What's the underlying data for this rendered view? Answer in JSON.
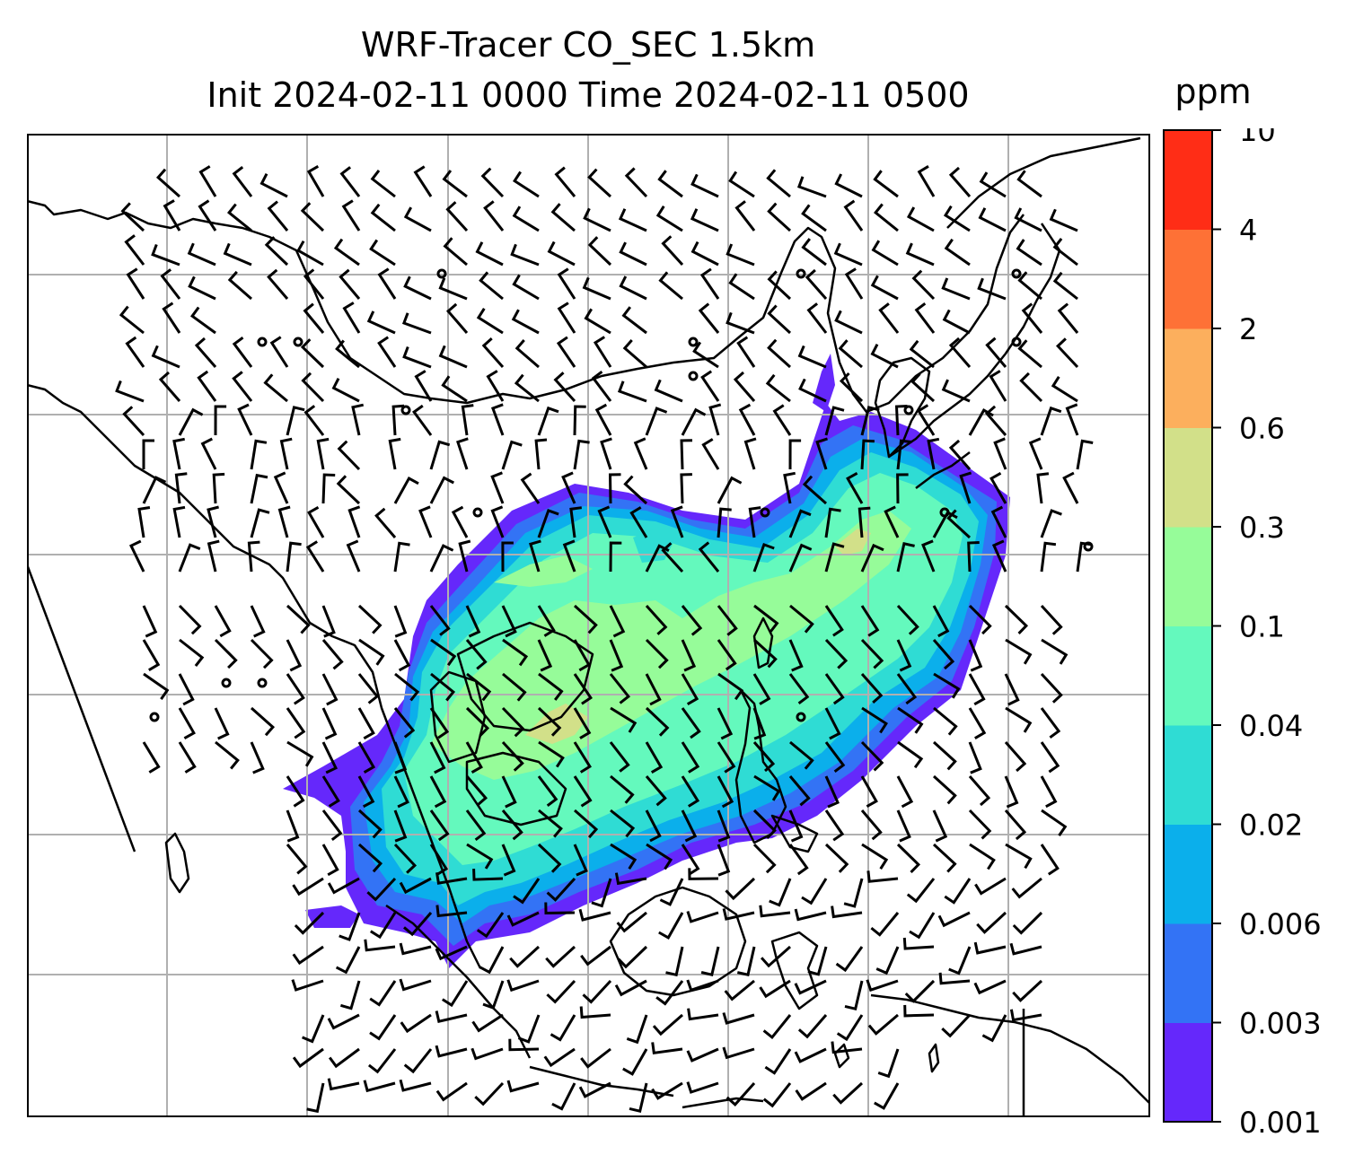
{
  "title": {
    "line1": "WRF-Tracer CO_SEC 1.5km",
    "line2": "Init 2024-02-11 0000 Time 2024-02-11 0500"
  },
  "colorbar": {
    "unit": "ppm",
    "levels": [
      "0.001",
      "0.003",
      "0.006",
      "0.02",
      "0.04",
      "0.1",
      "0.3",
      "0.6",
      "2",
      "4",
      "10"
    ],
    "colors": [
      "#6528fb",
      "#3373f5",
      "#0bafeb",
      "#2fdcd4",
      "#64f9bd",
      "#96fc99",
      "#d2e089",
      "#fcaf5d",
      "#fe7136",
      "#ff2d16"
    ]
  },
  "map": {
    "field_levels_present": [
      "0.001",
      "0.003",
      "0.006",
      "0.02",
      "0.04",
      "0.1",
      "0.3"
    ],
    "wind_barbs": true,
    "gridlines": true,
    "coastlines": true
  }
}
